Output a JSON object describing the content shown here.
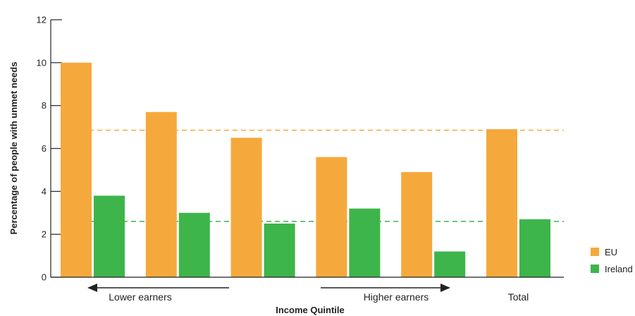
{
  "chart_data": {
    "type": "bar",
    "title": "",
    "xlabel": "Income Quintile",
    "ylabel": "Percentage of people with unmet needs",
    "ylim": [
      0,
      12
    ],
    "yticks": [
      0,
      2,
      4,
      6,
      8,
      10,
      12
    ],
    "categories": [
      "",
      "",
      "",
      "",
      "",
      "Total"
    ],
    "series": [
      {
        "name": "EU",
        "color": "#F5A93C",
        "values": [
          10.0,
          7.7,
          6.5,
          5.6,
          4.9,
          6.9
        ]
      },
      {
        "name": "Ireland",
        "color": "#3DB54A",
        "values": [
          3.8,
          3.0,
          2.5,
          3.2,
          1.2,
          2.7
        ]
      }
    ],
    "reference_lines": [
      {
        "series": "EU",
        "value": 6.85,
        "style": "dashed"
      },
      {
        "series": "Ireland",
        "value": 2.6,
        "style": "dashed"
      }
    ],
    "annotations": {
      "lower_earners": "Lower earners",
      "higher_earners": "Higher earners"
    },
    "legend_position": "bottom-right",
    "grid": false
  }
}
